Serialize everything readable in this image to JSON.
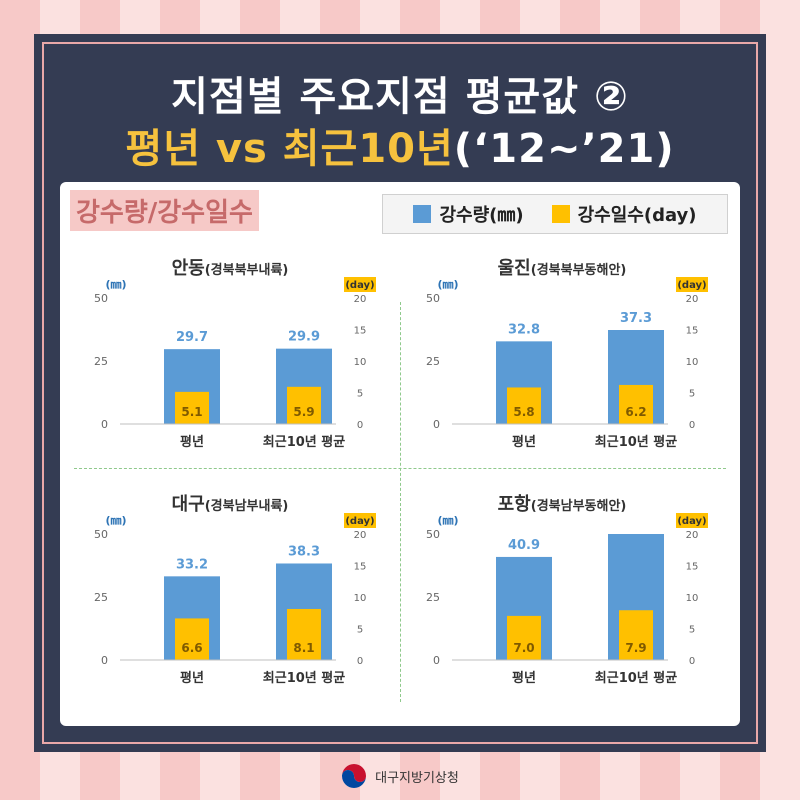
{
  "header": {
    "title_line1": "지점별 주요지점 평균값 ②",
    "title_line2_main": "평년 vs 최근10년",
    "title_line2_paren": "(‘12~’21)"
  },
  "section_label": "강수량/강수일수",
  "legend": {
    "precip": "강수량(㎜)",
    "days": "강수일수(day)"
  },
  "colors": {
    "precip": "#5b9bd5",
    "days": "#ffc000",
    "precip_label": "#5b9bd5",
    "days_label": "#7f5a00"
  },
  "footer": {
    "org": "대구지방기상청"
  },
  "chart_data": [
    {
      "type": "bar",
      "name": "안동",
      "name_sub": "(경북북부내륙)",
      "left_unit": "(㎜)",
      "right_unit": "(day)",
      "categories": [
        "평년",
        "최근10년 평균"
      ],
      "series": [
        {
          "name": "강수량(㎜)",
          "values": [
            29.7,
            29.9
          ],
          "axis": "left"
        },
        {
          "name": "강수일수(day)",
          "values": [
            5.1,
            5.9
          ],
          "axis": "right"
        }
      ],
      "left_ylim": [
        0,
        50
      ],
      "left_ticks": [
        0,
        25,
        50
      ],
      "right_ylim": [
        0,
        20
      ],
      "right_ticks": [
        0,
        5,
        10,
        15,
        20
      ]
    },
    {
      "type": "bar",
      "name": "울진",
      "name_sub": "(경북북부동해안)",
      "left_unit": "(㎜)",
      "right_unit": "(day)",
      "categories": [
        "평년",
        "최근10년 평균"
      ],
      "series": [
        {
          "name": "강수량(㎜)",
          "values": [
            32.8,
            37.3
          ],
          "axis": "left"
        },
        {
          "name": "강수일수(day)",
          "values": [
            5.8,
            6.2
          ],
          "axis": "right"
        }
      ],
      "left_ylim": [
        0,
        50
      ],
      "left_ticks": [
        0,
        25,
        50
      ],
      "right_ylim": [
        0,
        20
      ],
      "right_ticks": [
        0,
        5,
        10,
        15,
        20
      ]
    },
    {
      "type": "bar",
      "name": "대구",
      "name_sub": "(경북남부내륙)",
      "left_unit": "(㎜)",
      "right_unit": "(day)",
      "categories": [
        "평년",
        "최근10년 평균"
      ],
      "series": [
        {
          "name": "강수량(㎜)",
          "values": [
            33.2,
            38.3
          ],
          "axis": "left"
        },
        {
          "name": "강수일수(day)",
          "values": [
            6.6,
            8.1
          ],
          "axis": "right"
        }
      ],
      "left_ylim": [
        0,
        50
      ],
      "left_ticks": [
        0,
        25,
        50
      ],
      "right_ylim": [
        0,
        20
      ],
      "right_ticks": [
        0,
        5,
        10,
        15,
        20
      ]
    },
    {
      "type": "bar",
      "name": "포항",
      "name_sub": "(경북남부동해안)",
      "left_unit": "(㎜)",
      "right_unit": "(day)",
      "categories": [
        "평년",
        "최근10년 평균"
      ],
      "series": [
        {
          "name": "강수량(㎜)",
          "values": [
            40.9,
            50
          ],
          "axis": "left",
          "labels": [
            "40.9",
            ""
          ]
        },
        {
          "name": "강수일수(day)",
          "values": [
            7.0,
            7.9
          ],
          "axis": "right"
        }
      ],
      "left_ylim": [
        0,
        50
      ],
      "left_ticks": [
        0,
        25,
        50
      ],
      "right_ylim": [
        0,
        20
      ],
      "right_ticks": [
        0,
        5,
        10,
        15,
        20
      ]
    }
  ]
}
